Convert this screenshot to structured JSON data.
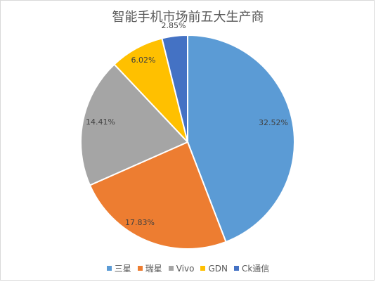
{
  "chart_data": {
    "type": "pie",
    "title": "智能手机市场前五大生产商",
    "categories": [
      "三星",
      "瑞星",
      "Vivo",
      "GDN",
      "Ck通信"
    ],
    "values": [
      32.52,
      17.83,
      14.41,
      6.02,
      2.85
    ],
    "labels": [
      "32.52%",
      "17.83%",
      "14.41%",
      "6.02%",
      "2.85%"
    ],
    "colors": [
      "#5B9BD5",
      "#ED7D31",
      "#A5A5A5",
      "#FFC000",
      "#4472C4"
    ],
    "legend": "bottom"
  }
}
